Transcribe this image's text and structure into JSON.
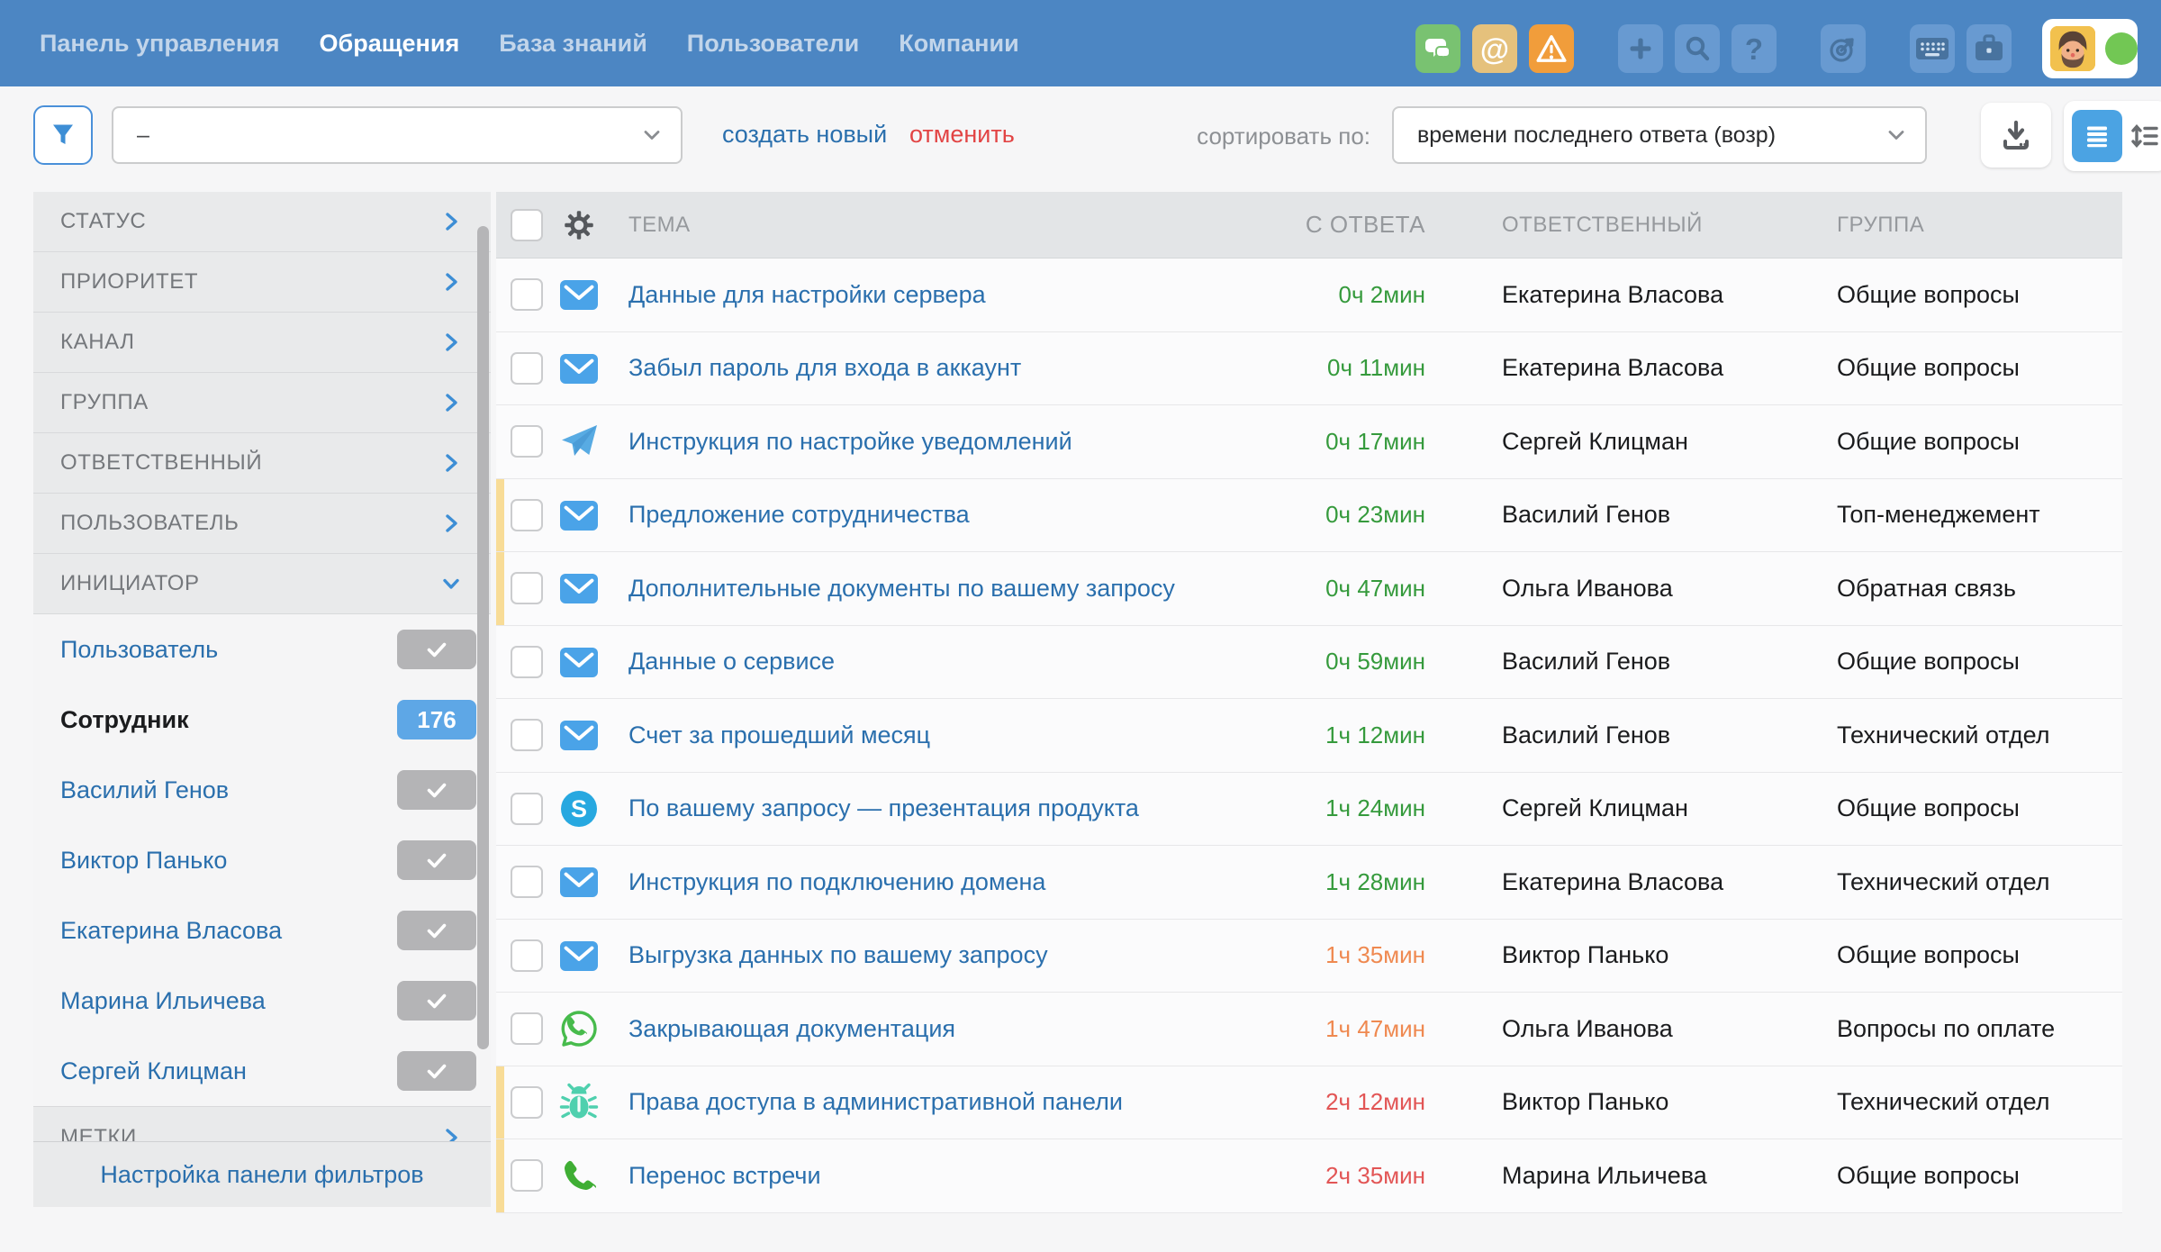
{
  "nav": {
    "items": [
      {
        "label": "Панель управления",
        "active": false
      },
      {
        "label": "Обращения",
        "active": true
      },
      {
        "label": "База знаний",
        "active": false
      },
      {
        "label": "Пользователи",
        "active": false
      },
      {
        "label": "Компании",
        "active": false
      }
    ],
    "icon_buttons": [
      "chat-icon",
      "mentions-icon",
      "alert-icon",
      "add-icon",
      "search-icon",
      "help-icon",
      "target-icon",
      "keyboard-icon",
      "briefcase-icon"
    ],
    "mentions_glyph": "@",
    "help_glyph": "?"
  },
  "toolbar": {
    "filter_icon": "filter-icon",
    "filter_value": "–",
    "create_new_label": "создать новый",
    "cancel_label": "отменить",
    "sort_label": "сортировать по:",
    "sort_value": "времени последнего ответа (возр)",
    "action_icons": [
      "download-icon",
      "list-view-icon",
      "density-view-icon"
    ]
  },
  "sidebar": {
    "sections": [
      "СТАТУС",
      "ПРИОРИТЕТ",
      "КАНАЛ",
      "ГРУППА",
      "ОТВЕТСТВЕННЫЙ",
      "ПОЛЬЗОВАТЕЛЬ"
    ],
    "expanded_section": "ИНИЦИАТОР",
    "items": [
      {
        "label": "Пользователь",
        "type": "check"
      },
      {
        "label": "Сотрудник",
        "type": "count",
        "count": "176",
        "bold": true
      },
      {
        "label": "Василий Генов",
        "type": "check"
      },
      {
        "label": "Виктор Панько",
        "type": "check"
      },
      {
        "label": "Екатерина Власова",
        "type": "check"
      },
      {
        "label": "Марина Ильичева",
        "type": "check"
      },
      {
        "label": "Сергей Клицман",
        "type": "check"
      }
    ],
    "clipped_section": "МЕТКИ",
    "footer": "Настройка панели фильтров"
  },
  "table": {
    "headers": {
      "theme": "ТЕМА",
      "since": "С ОТВЕТА",
      "assignee": "ОТВЕТСТВЕННЫЙ",
      "group": "ГРУППА"
    },
    "rows": [
      {
        "channel_icon": "mail-icon",
        "subject": "Данные для настройки сервера",
        "since": "0ч 2мин",
        "since_status": "ok",
        "assignee": "Екатерина Власова",
        "group": "Общие вопросы",
        "marked": false
      },
      {
        "channel_icon": "mail-icon",
        "subject": "Забыл пароль для входа в аккаунт",
        "since": "0ч 11мин",
        "since_status": "ok",
        "assignee": "Екатерина Власова",
        "group": "Общие вопросы",
        "marked": false
      },
      {
        "channel_icon": "telegram-icon",
        "subject": "Инструкция по настройке уведомлений",
        "since": "0ч 17мин",
        "since_status": "ok",
        "assignee": "Сергей Клицман",
        "group": "Общие вопросы",
        "marked": false
      },
      {
        "channel_icon": "mail-icon",
        "subject": "Предложение сотрудничества",
        "since": "0ч 23мин",
        "since_status": "ok",
        "assignee": "Василий Генов",
        "group": "Топ-менеджемент",
        "marked": true
      },
      {
        "channel_icon": "mail-icon",
        "subject": "Дополнительные документы по вашему запросу",
        "since": "0ч 47мин",
        "since_status": "ok",
        "assignee": "Ольга Иванова",
        "group": "Обратная связь",
        "marked": true
      },
      {
        "channel_icon": "mail-icon",
        "subject": "Данные о сервисе",
        "since": "0ч 59мин",
        "since_status": "ok",
        "assignee": "Василий Генов",
        "group": "Общие вопросы",
        "marked": false
      },
      {
        "channel_icon": "mail-icon",
        "subject": "Счет за прошедший месяц",
        "since": "1ч 12мин",
        "since_status": "ok",
        "assignee": "Василий Генов",
        "group": "Технический отдел",
        "marked": false
      },
      {
        "channel_icon": "skype-icon",
        "subject": "По вашему запросу — презентация продукта",
        "since": "1ч 24мин",
        "since_status": "ok",
        "assignee": "Сергей Клицман",
        "group": "Общие вопросы",
        "marked": false
      },
      {
        "channel_icon": "mail-icon",
        "subject": "Инструкция по подключению домена",
        "since": "1ч 28мин",
        "since_status": "ok",
        "assignee": "Екатерина Власова",
        "group": "Технический отдел",
        "marked": false
      },
      {
        "channel_icon": "mail-icon",
        "subject": "Выгрузка данных по вашему запросу",
        "since": "1ч 35мин",
        "since_status": "warn",
        "assignee": "Виктор Панько",
        "group": "Общие вопросы",
        "marked": false
      },
      {
        "channel_icon": "whatsapp-icon",
        "subject": "Закрывающая документация",
        "since": "1ч 47мин",
        "since_status": "warn",
        "assignee": "Ольга Иванова",
        "group": "Вопросы по оплате",
        "marked": false
      },
      {
        "channel_icon": "bug-icon",
        "subject": "Права доступа в административной панели",
        "since": "2ч 12мин",
        "since_status": "late",
        "assignee": "Виктор Панько",
        "group": "Технический отдел",
        "marked": true
      },
      {
        "channel_icon": "phone-icon",
        "subject": "Перенос встречи",
        "since": "2ч 35мин",
        "since_status": "late",
        "assignee": "Марина Ильичева",
        "group": "Общие вопросы",
        "marked": true
      }
    ]
  },
  "colors": {
    "header": "#4c86c3",
    "link": "#2a6fad",
    "cancel": "#e24444",
    "badge": "#5ea7e6",
    "marker": "#f8dc97",
    "online": "#72c754",
    "since": {
      "ok": "#359a3c",
      "warn": "#ef8950",
      "late": "#e25555"
    }
  }
}
